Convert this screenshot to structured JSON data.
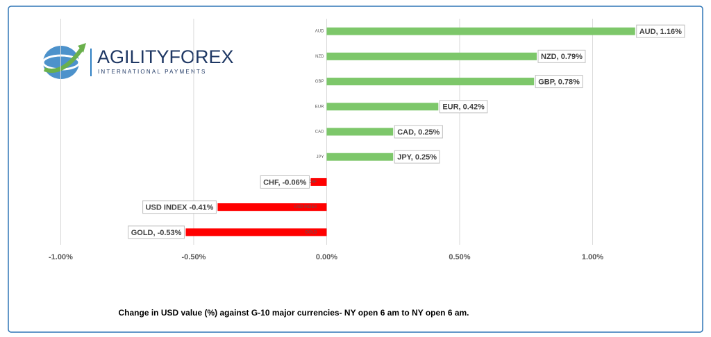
{
  "logo": {
    "name": "AGILITYFOREX",
    "tagline": "INTERNATIONAL PAYMENTS"
  },
  "chart_data": {
    "type": "bar",
    "orientation": "horizontal",
    "caption": "Change in  USD value (%)  against  G-10 major currencies- NY open 6 am to NY open 6 am.",
    "categories": [
      "AUD",
      "NZD",
      "GBP",
      "EUR",
      "CAD",
      "JPY",
      "CHF",
      "USD INDEX",
      "GOLD"
    ],
    "values": [
      1.16,
      0.79,
      0.78,
      0.42,
      0.25,
      0.25,
      -0.06,
      -0.41,
      -0.53
    ],
    "value_labels": [
      "AUD, 1.16%",
      "NZD, 0.79%",
      "GBP, 0.78%",
      "EUR, 0.42%",
      "CAD, 0.25%",
      "JPY, 0.25%",
      "CHF, -0.06%",
      "USD INDEX -0.41%",
      "GOLD, -0.53%"
    ],
    "positive_color": "#7dc76a",
    "negative_color": "#ff0000",
    "xlim": [
      -1.15,
      1.38
    ],
    "xticks": [
      {
        "value": -1,
        "label": "-1.00%"
      },
      {
        "value": -0.5,
        "label": "-0.50%"
      },
      {
        "value": 0,
        "label": "0.00%"
      },
      {
        "value": 0.5,
        "label": "0.50%"
      },
      {
        "value": 1,
        "label": "1.00%"
      }
    ],
    "grid": true
  }
}
